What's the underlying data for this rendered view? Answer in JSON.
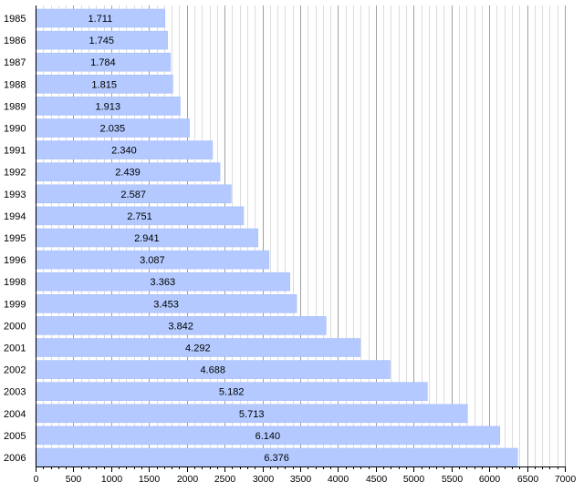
{
  "chart_data": {
    "type": "bar",
    "orientation": "horizontal",
    "categories": [
      "1985",
      "1986",
      "1987",
      "1988",
      "1989",
      "1990",
      "1991",
      "1992",
      "1993",
      "1994",
      "1995",
      "1996",
      "1998",
      "1999",
      "2000",
      "2001",
      "2002",
      "2003",
      "2004",
      "2005",
      "2006"
    ],
    "values": [
      1711,
      1745,
      1784,
      1815,
      1913,
      2035,
      2340,
      2439,
      2587,
      2751,
      2941,
      3087,
      3363,
      3453,
      3842,
      4292,
      4688,
      5182,
      5713,
      6140,
      6376
    ],
    "value_labels": [
      "1.711",
      "1.745",
      "1.784",
      "1.815",
      "1.913",
      "2.035",
      "2.340",
      "2.439",
      "2.587",
      "2.751",
      "2.941",
      "3.087",
      "3.363",
      "3.453",
      "3.842",
      "4.292",
      "4.688",
      "5.182",
      "5.713",
      "6.140",
      "6.376"
    ],
    "x_ticks": [
      0,
      500,
      1000,
      1500,
      2000,
      2500,
      3000,
      3500,
      4000,
      4500,
      5000,
      5500,
      6000,
      6500,
      7000
    ],
    "x_tick_labels": [
      "0",
      "500",
      "1000",
      "1500",
      "2000",
      "2500",
      "3000",
      "3500",
      "4000",
      "4500",
      "5000",
      "5500",
      "6000",
      "6500",
      "7000"
    ],
    "xlim": [
      0,
      7000
    ],
    "minor_tick_step": 100,
    "grid": true,
    "title": "",
    "xlabel": "",
    "ylabel": "",
    "colors": {
      "bar_fill": "#b3c9ff",
      "bar_edge": "#a8bfff",
      "major_grid": "#a0a0a0",
      "minor_grid": "#dcdcdc",
      "axis": "#000000"
    }
  }
}
